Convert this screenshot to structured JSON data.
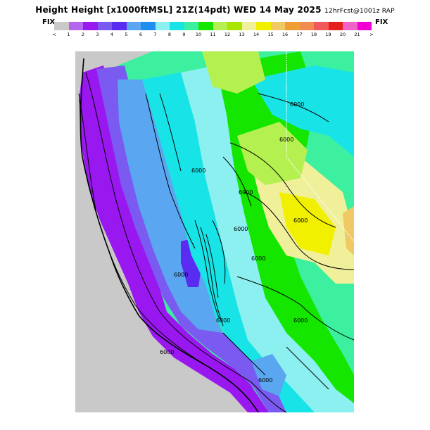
{
  "header": {
    "title_main": "Height Height [x1000ftMSL] 21Z(14pdt) WED 14 May 2025",
    "title_suffix": "12hrFcst@1001z RAP",
    "fix_left": "FIX",
    "fix_right": "FIX"
  },
  "legend": {
    "colors": [
      "#c9c9c9",
      "#b466ee",
      "#9a18f0",
      "#7a5af0",
      "#5a2bf0",
      "#5aa6f0",
      "#1e8ef0",
      "#8cf0f0",
      "#18e4e8",
      "#3cf0a0",
      "#14e600",
      "#b4f050",
      "#a8e600",
      "#f0f09a",
      "#f0f000",
      "#f0c864",
      "#f0a032",
      "#f08c50",
      "#f05a5a",
      "#e61e1e",
      "#f064c8",
      "#f000d2"
    ],
    "ticks": [
      "<",
      "1",
      "2",
      "3",
      "4",
      "5",
      "6",
      "7",
      "8",
      "9",
      "10",
      "11",
      "12",
      "13",
      "14",
      "15",
      "16",
      "17",
      "18",
      "19",
      "20",
      "21",
      ">"
    ]
  },
  "map": {
    "contour_labels": [
      "6000",
      "6000",
      "6000",
      "6000",
      "6000",
      "6000",
      "6000",
      "6000",
      "6000",
      "6000",
      "6000",
      "6000"
    ]
  }
}
